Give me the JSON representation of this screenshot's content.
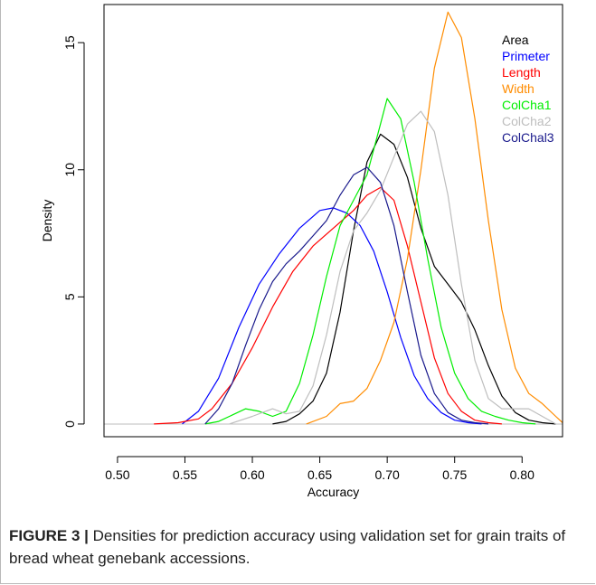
{
  "chart_data": {
    "type": "line",
    "xlabel": "Accuracy",
    "ylabel": "Density",
    "xlim": [
      0.49,
      0.83
    ],
    "ylim": [
      -0.5,
      16.5
    ],
    "xticks": [
      "0.50",
      "0.55",
      "0.60",
      "0.65",
      "0.70",
      "0.75",
      "0.80"
    ],
    "yticks": [
      "0",
      "5",
      "10",
      "15"
    ],
    "legend_position": "top-right",
    "grid": false,
    "series": [
      {
        "name": "Area",
        "color": "#000000",
        "points": [
          [
            0.615,
            0
          ],
          [
            0.625,
            0.1
          ],
          [
            0.635,
            0.4
          ],
          [
            0.645,
            0.9
          ],
          [
            0.655,
            2.0
          ],
          [
            0.665,
            4.4
          ],
          [
            0.675,
            7.6
          ],
          [
            0.685,
            10.3
          ],
          [
            0.695,
            11.4
          ],
          [
            0.705,
            11.0
          ],
          [
            0.715,
            9.7
          ],
          [
            0.725,
            7.7
          ],
          [
            0.735,
            6.2
          ],
          [
            0.745,
            5.5
          ],
          [
            0.755,
            4.8
          ],
          [
            0.765,
            3.7
          ],
          [
            0.775,
            2.3
          ],
          [
            0.785,
            1.1
          ],
          [
            0.795,
            0.45
          ],
          [
            0.805,
            0.15
          ],
          [
            0.815,
            0.05
          ],
          [
            0.825,
            0
          ]
        ]
      },
      {
        "name": "Primeter",
        "color": "#0000ff",
        "points": [
          [
            0.548,
            0
          ],
          [
            0.56,
            0.5
          ],
          [
            0.575,
            1.8
          ],
          [
            0.59,
            3.8
          ],
          [
            0.605,
            5.5
          ],
          [
            0.62,
            6.7
          ],
          [
            0.635,
            7.7
          ],
          [
            0.65,
            8.4
          ],
          [
            0.66,
            8.5
          ],
          [
            0.67,
            8.3
          ],
          [
            0.68,
            7.8
          ],
          [
            0.69,
            6.8
          ],
          [
            0.7,
            5.2
          ],
          [
            0.71,
            3.4
          ],
          [
            0.72,
            1.9
          ],
          [
            0.73,
            1.0
          ],
          [
            0.74,
            0.45
          ],
          [
            0.75,
            0.15
          ],
          [
            0.76,
            0.05
          ],
          [
            0.77,
            0
          ]
        ]
      },
      {
        "name": "Length",
        "color": "#ff0000",
        "points": [
          [
            0.527,
            0
          ],
          [
            0.545,
            0.05
          ],
          [
            0.56,
            0.2
          ],
          [
            0.57,
            0.6
          ],
          [
            0.585,
            1.6
          ],
          [
            0.6,
            3.0
          ],
          [
            0.615,
            4.6
          ],
          [
            0.63,
            6.0
          ],
          [
            0.645,
            7.0
          ],
          [
            0.66,
            7.7
          ],
          [
            0.675,
            8.4
          ],
          [
            0.685,
            9.0
          ],
          [
            0.695,
            9.3
          ],
          [
            0.705,
            8.8
          ],
          [
            0.715,
            7.0
          ],
          [
            0.725,
            4.8
          ],
          [
            0.735,
            2.6
          ],
          [
            0.745,
            1.2
          ],
          [
            0.755,
            0.5
          ],
          [
            0.765,
            0.15
          ],
          [
            0.775,
            0.05
          ],
          [
            0.785,
            0
          ]
        ]
      },
      {
        "name": "Width",
        "color": "#ff8c00",
        "points": [
          [
            0.64,
            0
          ],
          [
            0.655,
            0.3
          ],
          [
            0.665,
            0.8
          ],
          [
            0.675,
            0.9
          ],
          [
            0.685,
            1.4
          ],
          [
            0.695,
            2.5
          ],
          [
            0.705,
            4.0
          ],
          [
            0.715,
            6.5
          ],
          [
            0.725,
            10.0
          ],
          [
            0.735,
            14.0
          ],
          [
            0.745,
            16.2
          ],
          [
            0.755,
            15.2
          ],
          [
            0.765,
            12.0
          ],
          [
            0.775,
            8.0
          ],
          [
            0.785,
            4.5
          ],
          [
            0.795,
            2.2
          ],
          [
            0.805,
            1.2
          ],
          [
            0.815,
            0.8
          ],
          [
            0.825,
            0.3
          ],
          [
            0.83,
            0.05
          ]
        ]
      },
      {
        "name": "ColCha1",
        "color": "#00ee00",
        "points": [
          [
            0.565,
            0
          ],
          [
            0.575,
            0.1
          ],
          [
            0.585,
            0.35
          ],
          [
            0.595,
            0.6
          ],
          [
            0.605,
            0.5
          ],
          [
            0.615,
            0.3
          ],
          [
            0.625,
            0.5
          ],
          [
            0.635,
            1.6
          ],
          [
            0.645,
            3.5
          ],
          [
            0.655,
            5.8
          ],
          [
            0.665,
            7.8
          ],
          [
            0.675,
            8.8
          ],
          [
            0.685,
            9.8
          ],
          [
            0.695,
            11.8
          ],
          [
            0.7,
            12.8
          ],
          [
            0.71,
            12.0
          ],
          [
            0.72,
            9.5
          ],
          [
            0.73,
            6.5
          ],
          [
            0.74,
            3.8
          ],
          [
            0.75,
            2.0
          ],
          [
            0.76,
            1.0
          ],
          [
            0.77,
            0.5
          ],
          [
            0.78,
            0.3
          ],
          [
            0.79,
            0.15
          ],
          [
            0.8,
            0.05
          ],
          [
            0.81,
            0
          ]
        ]
      },
      {
        "name": "ColCha2",
        "color": "#bebebe",
        "points": [
          [
            0.583,
            0
          ],
          [
            0.6,
            0.3
          ],
          [
            0.615,
            0.6
          ],
          [
            0.625,
            0.4
          ],
          [
            0.635,
            0.5
          ],
          [
            0.645,
            1.5
          ],
          [
            0.655,
            3.5
          ],
          [
            0.665,
            6.0
          ],
          [
            0.675,
            7.6
          ],
          [
            0.685,
            8.3
          ],
          [
            0.695,
            9.2
          ],
          [
            0.705,
            10.5
          ],
          [
            0.715,
            11.8
          ],
          [
            0.725,
            12.3
          ],
          [
            0.735,
            11.5
          ],
          [
            0.745,
            9.0
          ],
          [
            0.755,
            5.5
          ],
          [
            0.765,
            2.5
          ],
          [
            0.775,
            1.0
          ],
          [
            0.785,
            0.6
          ],
          [
            0.795,
            0.6
          ],
          [
            0.805,
            0.6
          ],
          [
            0.815,
            0.3
          ],
          [
            0.825,
            0
          ]
        ]
      },
      {
        "name": "ColChal3",
        "color": "#1a1a8c",
        "points": [
          [
            0.565,
            0
          ],
          [
            0.575,
            0.6
          ],
          [
            0.585,
            1.6
          ],
          [
            0.595,
            3.1
          ],
          [
            0.605,
            4.5
          ],
          [
            0.615,
            5.6
          ],
          [
            0.625,
            6.3
          ],
          [
            0.635,
            6.8
          ],
          [
            0.645,
            7.4
          ],
          [
            0.655,
            8.0
          ],
          [
            0.665,
            9.0
          ],
          [
            0.675,
            9.8
          ],
          [
            0.685,
            10.1
          ],
          [
            0.695,
            9.5
          ],
          [
            0.705,
            7.8
          ],
          [
            0.715,
            5.2
          ],
          [
            0.725,
            2.7
          ],
          [
            0.735,
            1.2
          ],
          [
            0.745,
            0.45
          ],
          [
            0.755,
            0.15
          ],
          [
            0.765,
            0.05
          ],
          [
            0.775,
            0
          ]
        ]
      }
    ]
  },
  "caption": {
    "label": "FIGURE 3 |",
    "text": " Densities for prediction accuracy using validation set for grain traits of bread wheat genebank accessions."
  }
}
